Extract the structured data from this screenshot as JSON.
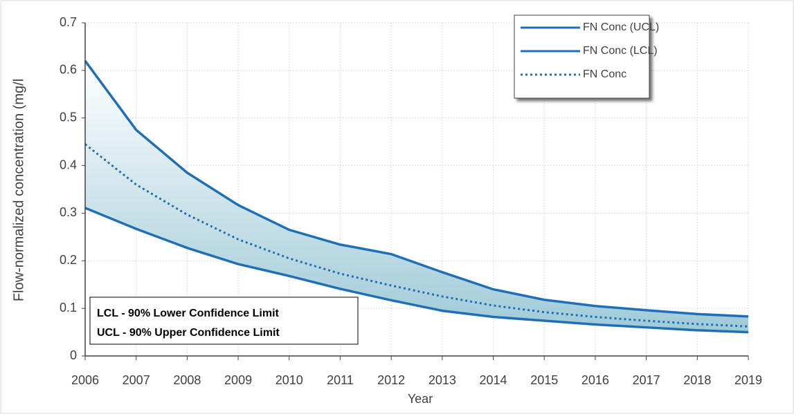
{
  "chart_data": {
    "type": "line",
    "x_label": "Year",
    "y_label": "Flow-normalized concentration (mg/l",
    "x": [
      2006,
      2007,
      2008,
      2009,
      2010,
      2011,
      2012,
      2013,
      2014,
      2015,
      2016,
      2017,
      2018,
      2019
    ],
    "series": [
      {
        "name": "FN Conc (UCL)",
        "color": "#1f6fb8",
        "style": "solid",
        "values": [
          0.62,
          0.475,
          0.385,
          0.317,
          0.265,
          0.234,
          0.214,
          0.176,
          0.14,
          0.118,
          0.105,
          0.096,
          0.088,
          0.083
        ]
      },
      {
        "name": "FN Conc (LCL)",
        "color": "#1f6fb8",
        "style": "solid",
        "values": [
          0.311,
          0.267,
          0.227,
          0.193,
          0.168,
          0.141,
          0.117,
          0.095,
          0.082,
          0.074,
          0.066,
          0.06,
          0.054,
          0.05
        ]
      },
      {
        "name": "FN Conc",
        "color": "#1f6fb8",
        "style": "dotted",
        "values": [
          0.445,
          0.36,
          0.297,
          0.245,
          0.205,
          0.173,
          0.148,
          0.125,
          0.106,
          0.092,
          0.082,
          0.074,
          0.067,
          0.062
        ]
      }
    ],
    "xlim": [
      2006,
      2019
    ],
    "xticks": [
      2006,
      2007,
      2008,
      2009,
      2010,
      2011,
      2012,
      2013,
      2014,
      2015,
      2016,
      2017,
      2018,
      2019
    ],
    "ylim": [
      0,
      0.7
    ],
    "yticks": [
      0,
      0.1,
      0.2,
      0.3,
      0.4,
      0.5,
      0.6,
      0.7
    ],
    "grid": true,
    "legend": "top-right",
    "annotations": [
      "LCL - 90% Lower Confidence Limit",
      "UCL - 90% Upper Confidence Limit"
    ]
  }
}
